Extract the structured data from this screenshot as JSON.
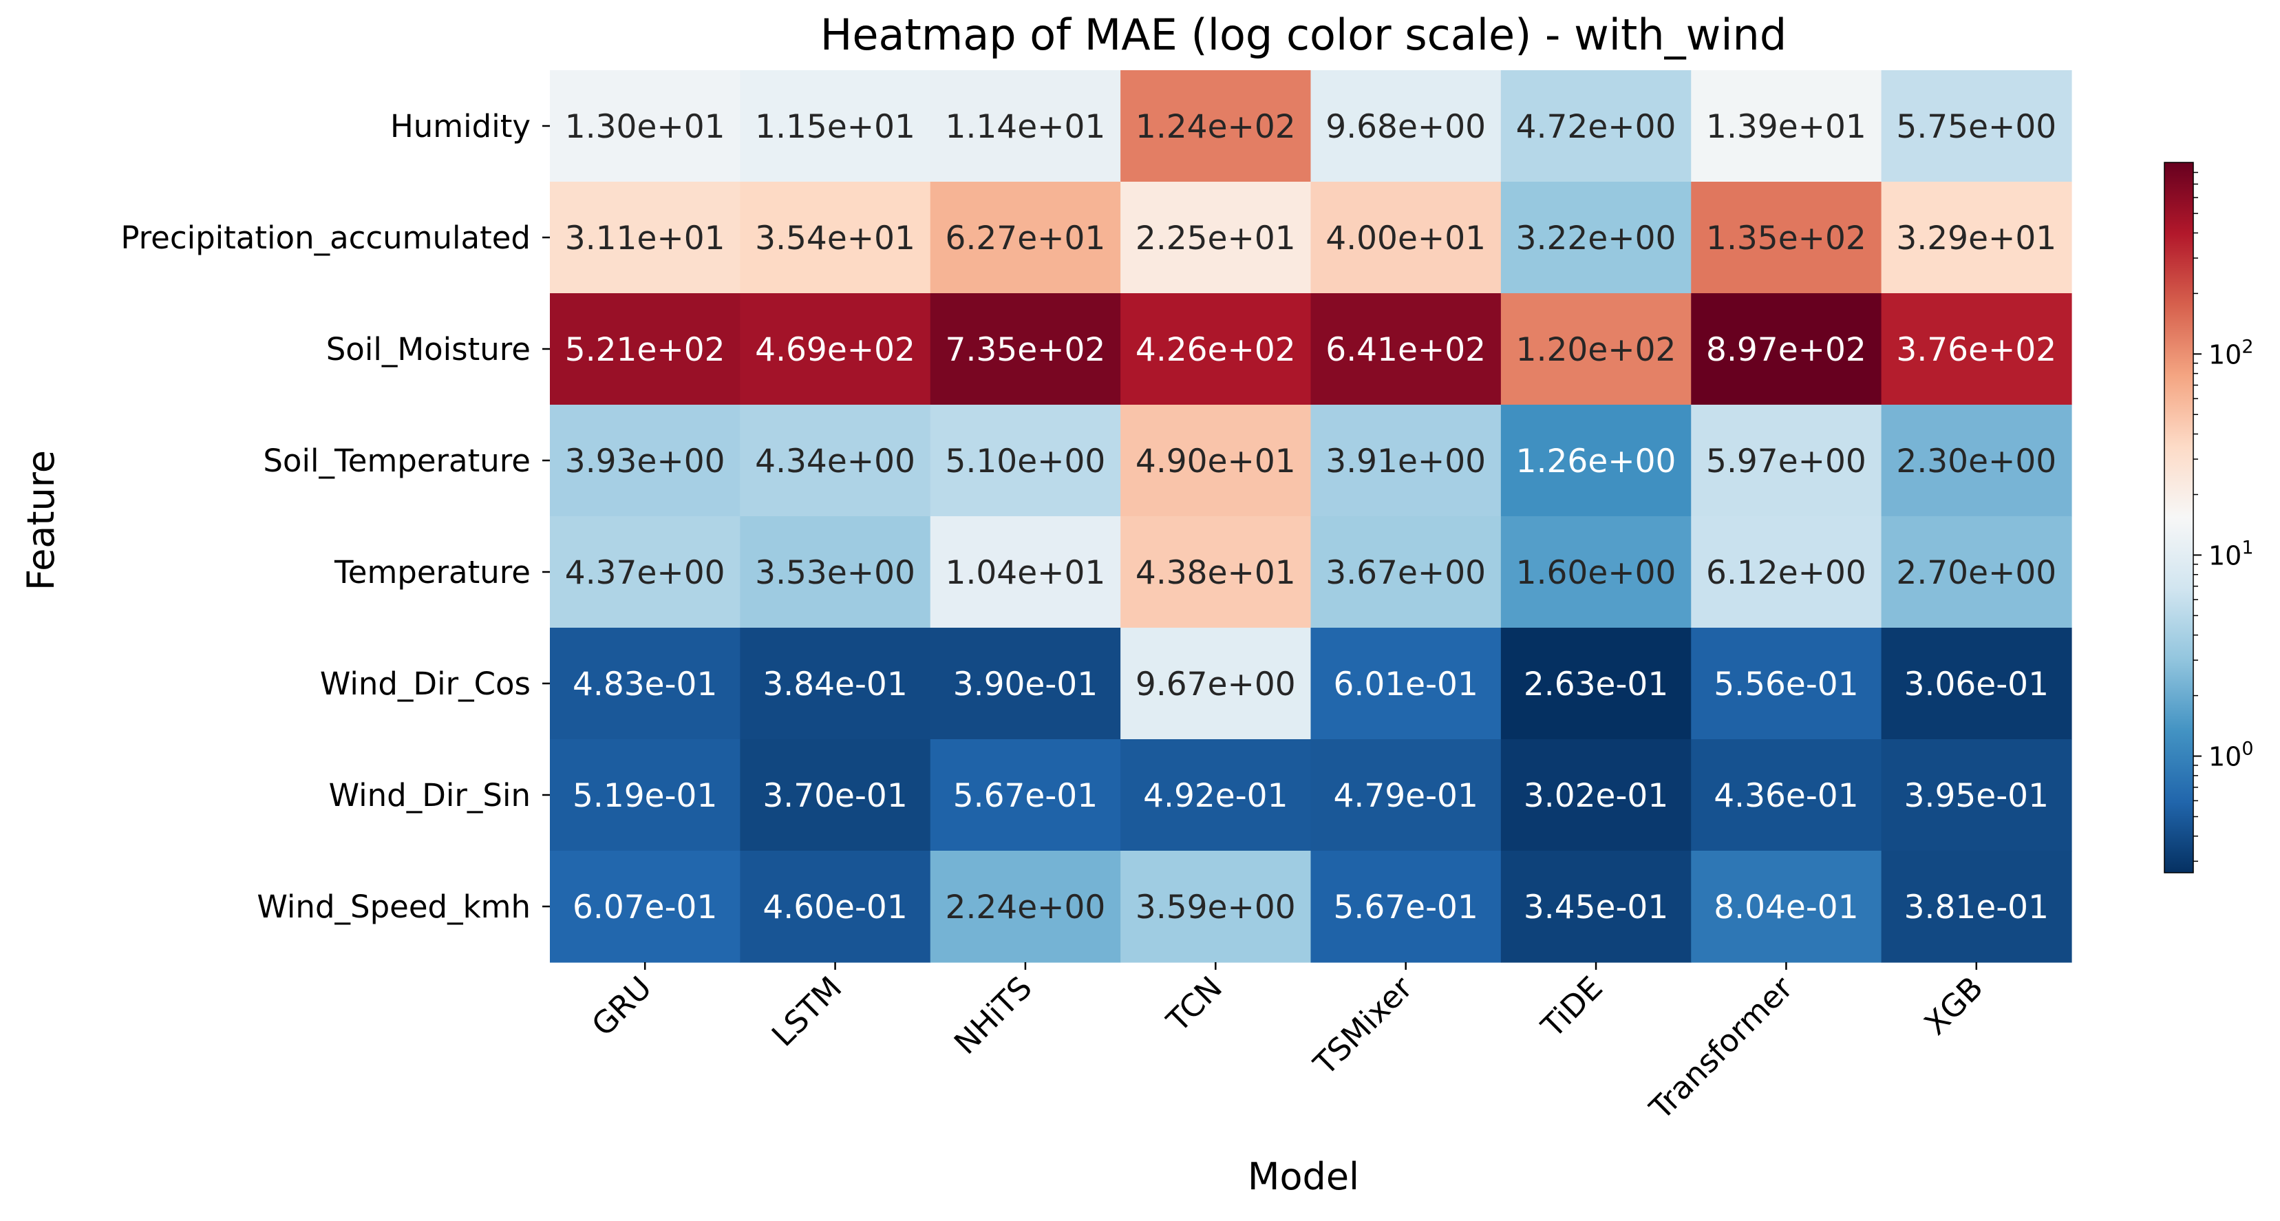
{
  "chart_data": {
    "type": "heatmap",
    "title": "Heatmap of MAE (log color scale) - with_wind",
    "xlabel": "Model",
    "ylabel": "Feature",
    "x_categories": [
      "GRU",
      "LSTM",
      "NHiTS",
      "TCN",
      "TSMixer",
      "TiDE",
      "Transformer",
      "XGB"
    ],
    "y_categories": [
      "Humidity",
      "Precipitation_accumulated",
      "Soil_Moisture",
      "Soil_Temperature",
      "Temperature",
      "Wind_Dir_Cos",
      "Wind_Dir_Sin",
      "Wind_Speed_kmh"
    ],
    "values": [
      [
        13.0,
        11.5,
        11.4,
        124,
        9.68,
        4.72,
        13.9,
        5.75
      ],
      [
        31.1,
        35.4,
        62.7,
        22.5,
        40.0,
        3.22,
        135,
        32.9
      ],
      [
        521,
        469,
        735,
        426,
        641,
        120,
        897,
        376
      ],
      [
        3.93,
        4.34,
        5.1,
        49.0,
        3.91,
        1.26,
        5.97,
        2.3
      ],
      [
        4.37,
        3.53,
        10.4,
        43.8,
        3.67,
        1.6,
        6.12,
        2.7
      ],
      [
        0.483,
        0.384,
        0.39,
        9.67,
        0.601,
        0.263,
        0.556,
        0.306
      ],
      [
        0.519,
        0.37,
        0.567,
        0.492,
        0.479,
        0.302,
        0.436,
        0.395
      ],
      [
        0.607,
        0.46,
        2.24,
        3.59,
        0.567,
        0.345,
        0.804,
        0.381
      ]
    ],
    "labels": [
      [
        "1.30e+01",
        "1.15e+01",
        "1.14e+01",
        "1.24e+02",
        "9.68e+00",
        "4.72e+00",
        "1.39e+01",
        "5.75e+00"
      ],
      [
        "3.11e+01",
        "3.54e+01",
        "6.27e+01",
        "2.25e+01",
        "4.00e+01",
        "3.22e+00",
        "1.35e+02",
        "3.29e+01"
      ],
      [
        "5.21e+02",
        "4.69e+02",
        "7.35e+02",
        "4.26e+02",
        "6.41e+02",
        "1.20e+02",
        "8.97e+02",
        "3.76e+02"
      ],
      [
        "3.93e+00",
        "4.34e+00",
        "5.10e+00",
        "4.90e+01",
        "3.91e+00",
        "1.26e+00",
        "5.97e+00",
        "2.30e+00"
      ],
      [
        "4.37e+00",
        "3.53e+00",
        "1.04e+01",
        "4.38e+01",
        "3.67e+00",
        "1.60e+00",
        "6.12e+00",
        "2.70e+00"
      ],
      [
        "4.83e-01",
        "3.84e-01",
        "3.90e-01",
        "9.67e+00",
        "6.01e-01",
        "2.63e-01",
        "5.56e-01",
        "3.06e-01"
      ],
      [
        "5.19e-01",
        "3.70e-01",
        "5.67e-01",
        "4.92e-01",
        "4.79e-01",
        "3.02e-01",
        "4.36e-01",
        "3.95e-01"
      ],
      [
        "6.07e-01",
        "4.60e-01",
        "2.24e+00",
        "3.59e+00",
        "5.67e-01",
        "3.45e-01",
        "8.04e-01",
        "3.81e-01"
      ]
    ],
    "color_scale": "log",
    "colormap": "RdBu_r",
    "colormap_stops": [
      "#053061",
      "#2166ac",
      "#4393c3",
      "#92c5de",
      "#d1e5f0",
      "#f7f7f7",
      "#fddbc7",
      "#f4a582",
      "#d6604d",
      "#b2182b",
      "#67001f"
    ],
    "vmin": 0.263,
    "vmax": 897,
    "colorbar": {
      "ticks": [
        {
          "value": 1,
          "base": "10",
          "exp": "0"
        },
        {
          "value": 10,
          "base": "10",
          "exp": "1"
        },
        {
          "value": 100,
          "base": "10",
          "exp": "2"
        }
      ]
    },
    "grid": false,
    "text_colors": {
      "dark": "#262626",
      "light": "#ffffff"
    }
  }
}
